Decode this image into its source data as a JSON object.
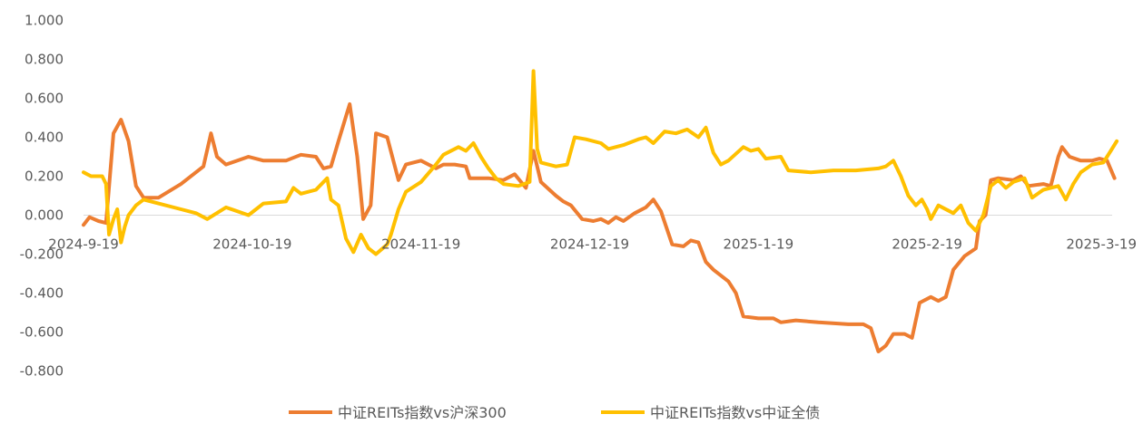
{
  "chart_data": {
    "type": "line",
    "title": "",
    "xlabel": "",
    "ylabel": "",
    "ylim": [
      -0.8,
      1.0
    ],
    "yticks": [
      "1.000",
      "0.800",
      "0.600",
      "0.400",
      "0.200",
      "0.000",
      "-0.200",
      "-0.400",
      "-0.600",
      "-0.800"
    ],
    "xticks": [
      "2024-9-19",
      "2024-10-19",
      "2024-11-19",
      "2024-12-19",
      "2025-1-19",
      "2025-2-19",
      "2025-3-19"
    ],
    "grid": false,
    "legend": "bottom",
    "series": [
      {
        "name": "中证REITs指数vs沪深300",
        "color": "#ED7D31",
        "points": [
          [
            0.0,
            -0.05
          ],
          [
            0.8,
            -0.01
          ],
          [
            2.0,
            -0.03
          ],
          [
            3.0,
            -0.04
          ],
          [
            4.0,
            0.42
          ],
          [
            5.0,
            0.49
          ],
          [
            6.0,
            0.38
          ],
          [
            7.0,
            0.15
          ],
          [
            8.0,
            0.09
          ],
          [
            10.0,
            0.09
          ],
          [
            13.0,
            0.16
          ],
          [
            16.0,
            0.25
          ],
          [
            17.0,
            0.42
          ],
          [
            17.8,
            0.3
          ],
          [
            19.0,
            0.26
          ],
          [
            22.0,
            0.3
          ],
          [
            24.0,
            0.28
          ],
          [
            27.0,
            0.28
          ],
          [
            29.0,
            0.31
          ],
          [
            31.0,
            0.3
          ],
          [
            32.0,
            0.24
          ],
          [
            33.0,
            0.25
          ],
          [
            34.0,
            0.38
          ],
          [
            35.5,
            0.57
          ],
          [
            36.5,
            0.3
          ],
          [
            37.3,
            -0.02
          ],
          [
            38.3,
            0.05
          ],
          [
            39.0,
            0.42
          ],
          [
            40.5,
            0.4
          ],
          [
            42.0,
            0.18
          ],
          [
            43.0,
            0.26
          ],
          [
            45.0,
            0.28
          ],
          [
            47.0,
            0.24
          ],
          [
            48.0,
            0.26
          ],
          [
            49.5,
            0.26
          ],
          [
            51.0,
            0.25
          ],
          [
            51.5,
            0.19
          ],
          [
            54.0,
            0.19
          ],
          [
            56.0,
            0.18
          ],
          [
            57.5,
            0.21
          ],
          [
            59.0,
            0.14
          ],
          [
            60.0,
            0.33
          ],
          [
            61.0,
            0.17
          ],
          [
            63.0,
            0.1
          ],
          [
            64.0,
            0.07
          ],
          [
            65.0,
            0.05
          ],
          [
            66.5,
            -0.02
          ],
          [
            68.0,
            -0.03
          ],
          [
            69.0,
            -0.02
          ],
          [
            70.0,
            -0.04
          ],
          [
            71.0,
            -0.01
          ],
          [
            72.0,
            -0.03
          ],
          [
            73.5,
            0.01
          ],
          [
            75.0,
            0.04
          ],
          [
            76.0,
            0.08
          ],
          [
            77.0,
            0.02
          ],
          [
            78.5,
            -0.15
          ],
          [
            80.0,
            -0.16
          ],
          [
            81.0,
            -0.13
          ],
          [
            82.0,
            -0.14
          ],
          [
            83.0,
            -0.24
          ],
          [
            84.0,
            -0.28
          ],
          [
            86.0,
            -0.34
          ],
          [
            87.0,
            -0.4
          ],
          [
            88.0,
            -0.52
          ],
          [
            90.0,
            -0.53
          ],
          [
            92.0,
            -0.53
          ],
          [
            93.0,
            -0.55
          ],
          [
            95.0,
            -0.54
          ],
          [
            98.0,
            -0.55
          ],
          [
            102.0,
            -0.56
          ],
          [
            104.0,
            -0.56
          ],
          [
            105.0,
            -0.58
          ],
          [
            106.0,
            -0.7
          ],
          [
            107.0,
            -0.67
          ],
          [
            108.0,
            -0.61
          ],
          [
            109.5,
            -0.61
          ],
          [
            110.5,
            -0.63
          ],
          [
            111.5,
            -0.45
          ],
          [
            113.0,
            -0.42
          ],
          [
            114.0,
            -0.44
          ],
          [
            115.0,
            -0.42
          ],
          [
            116.0,
            -0.28
          ],
          [
            117.5,
            -0.21
          ],
          [
            119.0,
            -0.17
          ],
          [
            119.5,
            -0.03
          ],
          [
            120.3,
            0.0
          ],
          [
            121.0,
            0.18
          ],
          [
            122.0,
            0.19
          ],
          [
            124.0,
            0.18
          ],
          [
            125.0,
            0.2
          ],
          [
            126.0,
            0.15
          ],
          [
            128.0,
            0.16
          ],
          [
            129.0,
            0.15
          ],
          [
            130.0,
            0.3
          ],
          [
            130.5,
            0.35
          ],
          [
            131.5,
            0.3
          ],
          [
            133.0,
            0.28
          ],
          [
            134.5,
            0.28
          ],
          [
            135.5,
            0.29
          ],
          [
            136.5,
            0.28
          ],
          [
            137.5,
            0.19
          ]
        ]
      },
      {
        "name": "中证REITs指数vs中证全债",
        "color": "#FFC000",
        "points": [
          [
            0.0,
            0.22
          ],
          [
            1.0,
            0.2
          ],
          [
            2.5,
            0.2
          ],
          [
            3.0,
            0.16
          ],
          [
            3.4,
            -0.1
          ],
          [
            4.0,
            -0.02
          ],
          [
            4.5,
            0.03
          ],
          [
            5.0,
            -0.14
          ],
          [
            5.5,
            -0.06
          ],
          [
            6.0,
            0.0
          ],
          [
            7.0,
            0.05
          ],
          [
            8.0,
            0.08
          ],
          [
            10.0,
            0.06
          ],
          [
            13.0,
            0.03
          ],
          [
            15.0,
            0.01
          ],
          [
            16.5,
            -0.02
          ],
          [
            19.0,
            0.04
          ],
          [
            22.0,
            0.0
          ],
          [
            24.0,
            0.06
          ],
          [
            27.0,
            0.07
          ],
          [
            28.0,
            0.14
          ],
          [
            29.0,
            0.11
          ],
          [
            31.0,
            0.13
          ],
          [
            32.5,
            0.19
          ],
          [
            33.0,
            0.08
          ],
          [
            34.0,
            0.05
          ],
          [
            35.0,
            -0.12
          ],
          [
            36.0,
            -0.19
          ],
          [
            37.0,
            -0.1
          ],
          [
            38.0,
            -0.17
          ],
          [
            39.0,
            -0.2
          ],
          [
            40.5,
            -0.15
          ],
          [
            41.0,
            -0.1
          ],
          [
            42.0,
            0.03
          ],
          [
            43.0,
            0.12
          ],
          [
            45.0,
            0.17
          ],
          [
            47.0,
            0.26
          ],
          [
            48.0,
            0.31
          ],
          [
            50.0,
            0.35
          ],
          [
            51.0,
            0.33
          ],
          [
            52.0,
            0.37
          ],
          [
            53.0,
            0.3
          ],
          [
            54.0,
            0.24
          ],
          [
            55.0,
            0.19
          ],
          [
            56.0,
            0.16
          ],
          [
            58.0,
            0.15
          ],
          [
            59.5,
            0.17
          ],
          [
            60.0,
            0.74
          ],
          [
            60.5,
            0.34
          ],
          [
            61.0,
            0.27
          ],
          [
            63.0,
            0.25
          ],
          [
            64.5,
            0.26
          ],
          [
            65.5,
            0.4
          ],
          [
            67.0,
            0.39
          ],
          [
            69.0,
            0.37
          ],
          [
            70.0,
            0.34
          ],
          [
            72.0,
            0.36
          ],
          [
            74.0,
            0.39
          ],
          [
            75.0,
            0.4
          ],
          [
            76.0,
            0.37
          ],
          [
            77.5,
            0.43
          ],
          [
            79.0,
            0.42
          ],
          [
            80.5,
            0.44
          ],
          [
            82.0,
            0.4
          ],
          [
            83.0,
            0.45
          ],
          [
            84.0,
            0.32
          ],
          [
            85.0,
            0.26
          ],
          [
            86.0,
            0.28
          ],
          [
            88.0,
            0.35
          ],
          [
            89.0,
            0.33
          ],
          [
            90.0,
            0.34
          ],
          [
            91.0,
            0.29
          ],
          [
            93.0,
            0.3
          ],
          [
            94.0,
            0.23
          ],
          [
            97.0,
            0.22
          ],
          [
            100.0,
            0.23
          ],
          [
            103.0,
            0.23
          ],
          [
            106.0,
            0.24
          ],
          [
            107.0,
            0.25
          ],
          [
            108.0,
            0.28
          ],
          [
            109.0,
            0.2
          ],
          [
            110.0,
            0.1
          ],
          [
            111.0,
            0.05
          ],
          [
            111.8,
            0.08
          ],
          [
            112.5,
            0.03
          ],
          [
            113.0,
            -0.02
          ],
          [
            114.0,
            0.05
          ],
          [
            116.0,
            0.01
          ],
          [
            117.0,
            0.05
          ],
          [
            118.0,
            -0.04
          ],
          [
            119.0,
            -0.08
          ],
          [
            120.0,
            0.0
          ],
          [
            121.0,
            0.15
          ],
          [
            122.0,
            0.18
          ],
          [
            123.0,
            0.14
          ],
          [
            124.0,
            0.17
          ],
          [
            125.5,
            0.19
          ],
          [
            126.5,
            0.09
          ],
          [
            128.0,
            0.13
          ],
          [
            130.0,
            0.15
          ],
          [
            131.0,
            0.08
          ],
          [
            132.0,
            0.16
          ],
          [
            133.0,
            0.22
          ],
          [
            134.5,
            0.26
          ],
          [
            136.0,
            0.27
          ],
          [
            137.0,
            0.33
          ],
          [
            137.8,
            0.38
          ]
        ]
      }
    ]
  }
}
